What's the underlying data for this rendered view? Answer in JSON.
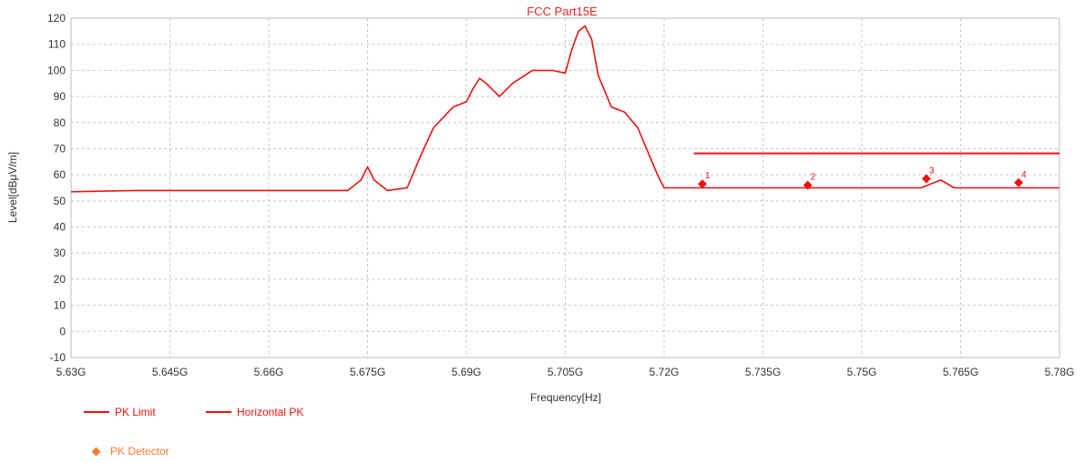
{
  "colors": {
    "trace": "#ee1111",
    "limit": "#ee1111",
    "marker": "#ee1111",
    "detector": "#ff7a2a",
    "grid": "#c8c8c8",
    "text": "#333333"
  },
  "chart_data": {
    "type": "line",
    "title": "FCC Part15E",
    "xlabel": "Frequency[Hz]",
    "ylabel": "Level[dBμV/m]",
    "xlim": [
      5.63,
      5.78
    ],
    "ylim": [
      -10,
      120
    ],
    "x_ticks": [
      5.63,
      5.645,
      5.66,
      5.675,
      5.69,
      5.705,
      5.72,
      5.735,
      5.75,
      5.765,
      5.78
    ],
    "x_tick_labels": [
      "5.63G",
      "5.645G",
      "5.66G",
      "5.675G",
      "5.69G",
      "5.705G",
      "5.72G",
      "5.735G",
      "5.75G",
      "5.765G",
      "5.78G"
    ],
    "y_ticks": [
      -10,
      0,
      10,
      20,
      30,
      40,
      50,
      60,
      70,
      80,
      90,
      100,
      110,
      120
    ],
    "grid": true,
    "series": [
      {
        "name": "Horizontal PK",
        "x": [
          5.63,
          5.64,
          5.65,
          5.66,
          5.672,
          5.674,
          5.675,
          5.676,
          5.678,
          5.681,
          5.683,
          5.685,
          5.688,
          5.69,
          5.691,
          5.692,
          5.693,
          5.695,
          5.697,
          5.7,
          5.703,
          5.705,
          5.706,
          5.707,
          5.708,
          5.709,
          5.71,
          5.712,
          5.714,
          5.716,
          5.718,
          5.719,
          5.72,
          5.725,
          5.735,
          5.745,
          5.755,
          5.759,
          5.762,
          5.764,
          5.77,
          5.78
        ],
        "y": [
          53.5,
          54,
          54,
          54,
          54,
          58,
          63,
          58,
          54,
          55,
          67,
          78,
          86,
          88,
          93,
          97,
          95,
          90,
          95,
          100,
          100,
          99,
          108,
          115,
          117,
          112,
          98,
          86,
          84,
          78,
          66,
          60,
          55,
          55,
          55,
          55,
          55,
          55,
          58,
          55,
          55,
          55
        ]
      },
      {
        "name": "PK Limit",
        "x": [
          5.7245,
          5.78
        ],
        "y": [
          68.2,
          68.2
        ]
      }
    ],
    "markers": [
      {
        "label": "1",
        "x": 5.7258,
        "y": 56.5
      },
      {
        "label": "2",
        "x": 5.7418,
        "y": 56.0
      },
      {
        "label": "3",
        "x": 5.7598,
        "y": 58.5
      },
      {
        "label": "4",
        "x": 5.7738,
        "y": 57.0
      }
    ],
    "legend": {
      "placement": "bottom-left",
      "entries": [
        "PK Limit",
        "Horizontal PK",
        "PK Detector"
      ]
    }
  }
}
